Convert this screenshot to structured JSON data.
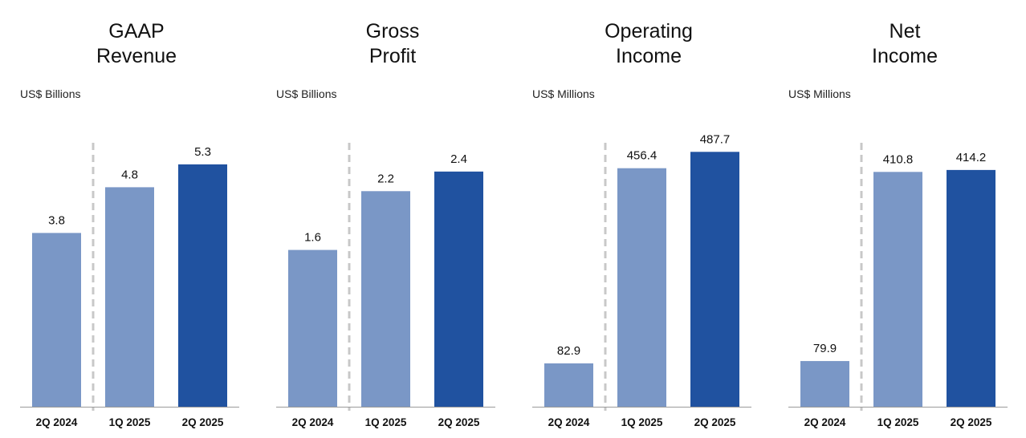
{
  "chart_data": [
    {
      "type": "bar",
      "title": "GAAP Revenue",
      "title_lines": [
        "GAAP",
        "Revenue"
      ],
      "ylabel": "US$ Billions",
      "categories": [
        "2Q 2024",
        "1Q 2025",
        "2Q 2025"
      ],
      "values": [
        3.8,
        4.8,
        5.3
      ],
      "value_labels": [
        "3.8",
        "4.8",
        "5.3"
      ],
      "ylim": [
        0,
        6.0
      ],
      "colors": [
        "#7a97c6",
        "#7a97c6",
        "#2052a0"
      ],
      "divider_after_index": 0
    },
    {
      "type": "bar",
      "title": "Gross Profit",
      "title_lines": [
        "Gross",
        "Profit"
      ],
      "ylabel": "US$ Billions",
      "categories": [
        "2Q 2024",
        "1Q 2025",
        "2Q 2025"
      ],
      "values": [
        1.6,
        2.2,
        2.4
      ],
      "value_labels": [
        "1.6",
        "2.2",
        "2.4"
      ],
      "ylim": [
        0,
        2.8
      ],
      "colors": [
        "#7a97c6",
        "#7a97c6",
        "#2052a0"
      ],
      "divider_after_index": 0
    },
    {
      "type": "bar",
      "title": "Operating Income",
      "title_lines": [
        "Operating",
        "Income"
      ],
      "ylabel": "US$ Millions",
      "categories": [
        "2Q 2024",
        "1Q 2025",
        "2Q 2025"
      ],
      "values": [
        82.9,
        456.4,
        487.7
      ],
      "value_labels": [
        "82.9",
        "456.4",
        "487.7"
      ],
      "ylim": [
        0,
        525
      ],
      "colors": [
        "#7a97c6",
        "#7a97c6",
        "#2052a0"
      ],
      "divider_after_index": 0
    },
    {
      "type": "bar",
      "title": "Net Income",
      "title_lines": [
        "Net",
        "Income"
      ],
      "ylabel": "US$ Millions",
      "categories": [
        "2Q 2024",
        "1Q 2025",
        "2Q 2025"
      ],
      "values": [
        79.9,
        410.8,
        414.2
      ],
      "value_labels": [
        "79.9",
        "410.8",
        "414.2"
      ],
      "ylim": [
        0,
        480
      ],
      "colors": [
        "#7a97c6",
        "#7a97c6",
        "#2052a0"
      ],
      "divider_after_index": 0
    }
  ]
}
